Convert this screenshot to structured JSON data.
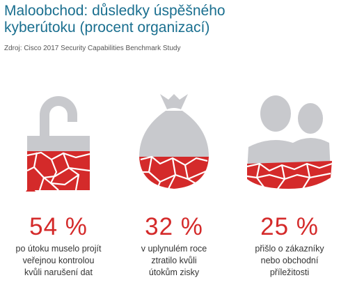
{
  "title": "Maloobchod: důsledky úspěšného kyberútoku (procent organizací)",
  "source": "Zdroj: Cisco 2017 Security Capabilities Benchmark Study",
  "colors": {
    "title": "#1a6f8f",
    "accent": "#d42a2a",
    "icon_gray": "#c8c9cd"
  },
  "stats": [
    {
      "icon": "broken-padlock-icon",
      "value": "54 %",
      "label_lines": [
        "po útoku muselo projít",
        "veřejnou kontrolou",
        "kvůli narušení dat"
      ]
    },
    {
      "icon": "broken-money-bag-icon",
      "value": "32 %",
      "label_lines": [
        "v uplynulém roce",
        "ztratilo kvůli",
        "útokům zisky"
      ]
    },
    {
      "icon": "broken-people-icon",
      "value": "25 %",
      "label_lines": [
        "přišlo o zákazníky",
        "nebo obchodní",
        "příležitosti"
      ]
    }
  ]
}
